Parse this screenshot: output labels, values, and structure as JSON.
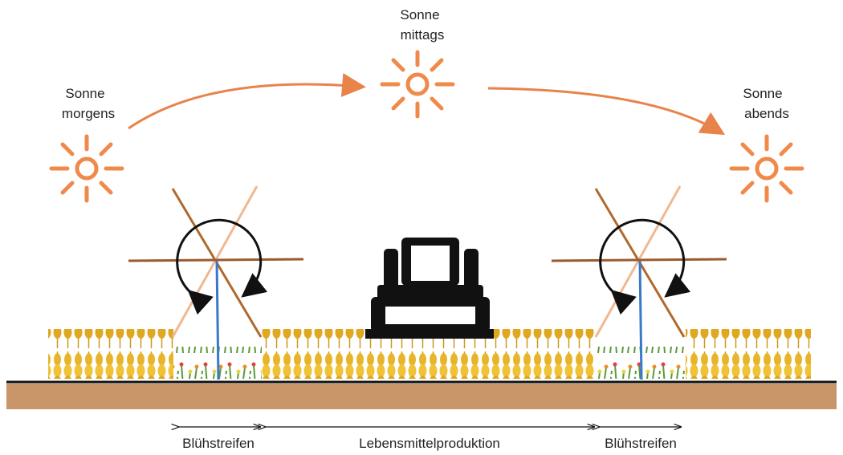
{
  "suns": [
    {
      "label": [
        "Sonne",
        "morgens"
      ]
    },
    {
      "label": [
        "Sonne",
        "mittags"
      ]
    },
    {
      "label": [
        "Sonne",
        "abends"
      ]
    }
  ],
  "zones": [
    {
      "label": "Blühstreifen"
    },
    {
      "label": "Lebensmittelproduktion"
    },
    {
      "label": "Blühstreifen"
    }
  ]
}
